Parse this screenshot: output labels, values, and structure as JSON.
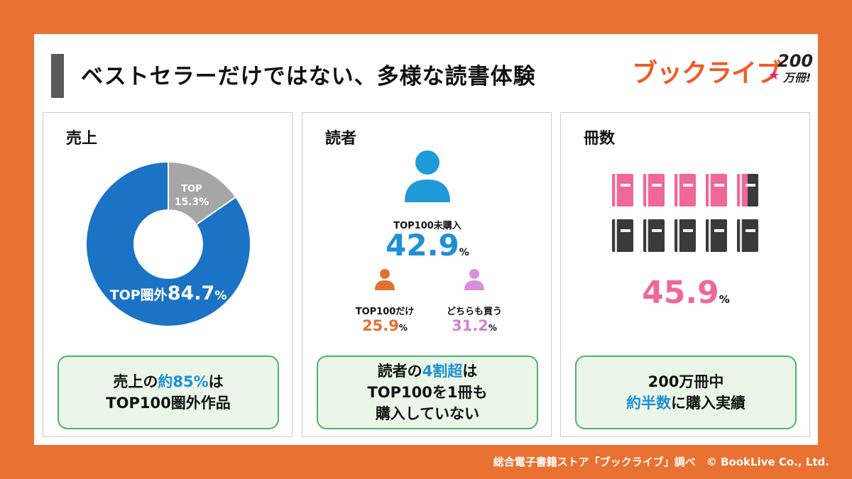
{
  "title": "ベストセラーだけではない、多様な読書体験",
  "logo": {
    "text": "ブックライブ",
    "number": "200",
    "unit": "万冊!",
    "star": "★"
  },
  "panels": {
    "sales": {
      "heading": "売上",
      "note_line1_a": "売上の",
      "note_line1_b": "約85%",
      "note_line1_c": "は",
      "note_line2": "TOP100圏外作品"
    },
    "readers": {
      "heading": "読者",
      "main_label": "TOP100未購入",
      "main_value": "42.9",
      "main_unit": "%",
      "left_label": "TOP100だけ",
      "left_value": "25.9",
      "left_unit": "%",
      "right_label": "どちらも買う",
      "right_value": "31.2",
      "right_unit": "%",
      "note_line1_a": "読者の",
      "note_line1_b": "4割超",
      "note_line1_c": "は",
      "note_line2": "TOP100を1冊も",
      "note_line3": "購入していない"
    },
    "volumes": {
      "heading": "冊数",
      "value": "45.9",
      "unit": "%",
      "note_line1": "200万冊中",
      "note_line2_a": "約半数",
      "note_line2_b": "に購入実績"
    }
  },
  "colors": {
    "accent_blue": "#1F8FD6",
    "pie_blue": "#1A73C4",
    "pie_gray": "#A6A6A6",
    "pink": "#F0679A",
    "orange": "#E97132",
    "violet": "#D27FD6",
    "book_dark": "#3A3A3A"
  },
  "chart_data": [
    {
      "type": "pie",
      "title": "売上",
      "slices": [
        {
          "name": "TOP",
          "label": "TOP",
          "value": 15.3,
          "value_label": "15.3%",
          "color": "#A6A6A6"
        },
        {
          "name": "TOP圏外",
          "label": "TOP圏外",
          "value": 84.7,
          "value_label": "84.7",
          "unit": "%",
          "color": "#1A73C4"
        }
      ]
    },
    {
      "type": "table",
      "title": "読者",
      "rows": [
        {
          "label": "TOP100未購入",
          "value": 42.9
        },
        {
          "label": "TOP100だけ",
          "value": 25.9
        },
        {
          "label": "どちらも買う",
          "value": 31.2
        }
      ]
    },
    {
      "type": "table",
      "title": "冊数",
      "books_total": 10,
      "books_highlighted": 4.5,
      "value": 45.9
    }
  ],
  "footer": "総合電子書籍ストア「ブックライブ」調べ　© BookLive Co., Ltd."
}
